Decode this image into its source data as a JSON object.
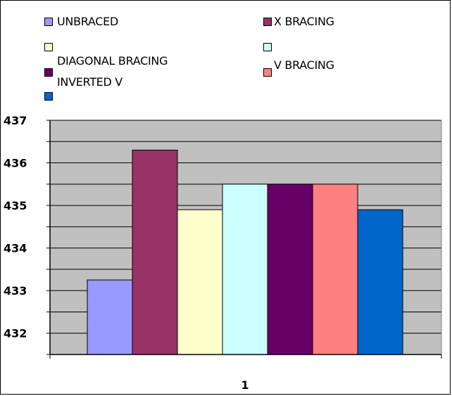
{
  "chart_data": {
    "type": "bar",
    "categories": [
      "1"
    ],
    "series": [
      {
        "name": "UNBRACED",
        "values": [
          433.25
        ],
        "color": "#9999FF"
      },
      {
        "name": "X BRACING",
        "values": [
          436.3
        ],
        "color": "#993366"
      },
      {
        "name": "DIAGONAL BRACING",
        "values": [
          434.9
        ],
        "color": "#FFFFCC"
      },
      {
        "name": "",
        "values": [
          435.5
        ],
        "color": "#CCFFFF"
      },
      {
        "name": "INVERTED V",
        "values": [
          435.5
        ],
        "color": "#660066"
      },
      {
        "name": "V BRACING",
        "values": [
          435.5
        ],
        "color": "#FF8080"
      },
      {
        "name": "",
        "values": [
          434.9
        ],
        "color": "#0066CC"
      }
    ],
    "title": "",
    "xlabel": "",
    "ylabel": "",
    "ylim": [
      431.5,
      437
    ],
    "yticks": [
      "432",
      "433",
      "434",
      "435",
      "436",
      "437"
    ],
    "grid": true,
    "plot_background": "#C0C0C0",
    "legend_position": "top"
  }
}
